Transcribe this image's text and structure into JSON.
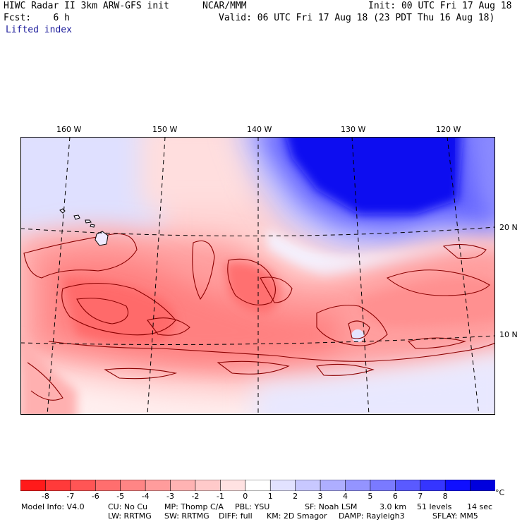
{
  "header": {
    "model_title": "HIWC Radar II 3km ARW-GFS init",
    "org": "NCAR/MMM",
    "init": "Init: 00 UTC Fri 17 Aug 18",
    "fcst": "Fcst:    6 h",
    "valid": "Valid: 06 UTC Fri 17 Aug 18 (23 PDT Thu 16 Aug 18)",
    "field": "Lifted index"
  },
  "map": {
    "lon_labels": [
      "160 W",
      "150 W",
      "140 W",
      "130 W",
      "120 W"
    ],
    "lat_labels": [
      "20 N",
      "10 N"
    ],
    "contour_color": "#8b0000"
  },
  "colorbar": {
    "levels": [
      "-8",
      "-7",
      "-6",
      "-5",
      "-4",
      "-3",
      "-2",
      "-1",
      "0",
      "1",
      "2",
      "3",
      "4",
      "5",
      "6",
      "7",
      "8"
    ],
    "unit": "°C",
    "colors": [
      "#ff1a1a",
      "#ff3a3a",
      "#ff5555",
      "#ff6e6e",
      "#ff8585",
      "#ff9c9c",
      "#ffb3b3",
      "#ffcaca",
      "#ffe2e2",
      "#ffffff",
      "#e2e2ff",
      "#c8c8ff",
      "#aeaeff",
      "#9494ff",
      "#7a7aff",
      "#5a5aff",
      "#3535ff",
      "#0f0fff",
      "#0000dd"
    ]
  },
  "footer": {
    "line1": [
      "Model Info: V4.0",
      "CU: No Cu",
      "MP: Thomp C/A",
      "PBL: YSU",
      "SF: Noah LSM",
      "3.0 km",
      "51 levels",
      "14 sec"
    ],
    "line2": [
      "LW: RRTMG",
      "SW: RRTMG",
      "DIFF: full",
      "KM: 2D Smagor",
      "DAMP: Rayleigh3",
      "SFLAY: MM5"
    ]
  }
}
